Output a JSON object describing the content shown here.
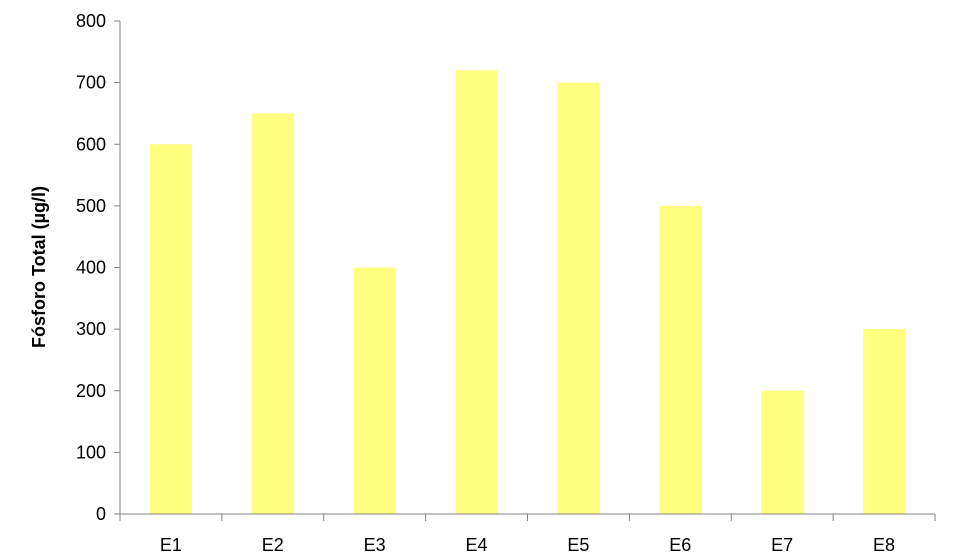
{
  "chart_data": {
    "type": "bar",
    "title": "",
    "xlabel": "",
    "ylabel": "Fósforo Total (µg/l)",
    "categories": [
      "E1",
      "E2",
      "E3",
      "E4",
      "E5",
      "E6",
      "E7",
      "E8"
    ],
    "values": [
      600,
      650,
      400,
      720,
      700,
      500,
      200,
      300
    ],
    "ylim": [
      0,
      800
    ],
    "yticks": [
      0,
      100,
      200,
      300,
      400,
      500,
      600,
      700,
      800
    ],
    "grid": false,
    "legend": "none",
    "colors": {
      "bar": "#ffff80",
      "axis": "#808080",
      "text": "#000000"
    }
  }
}
